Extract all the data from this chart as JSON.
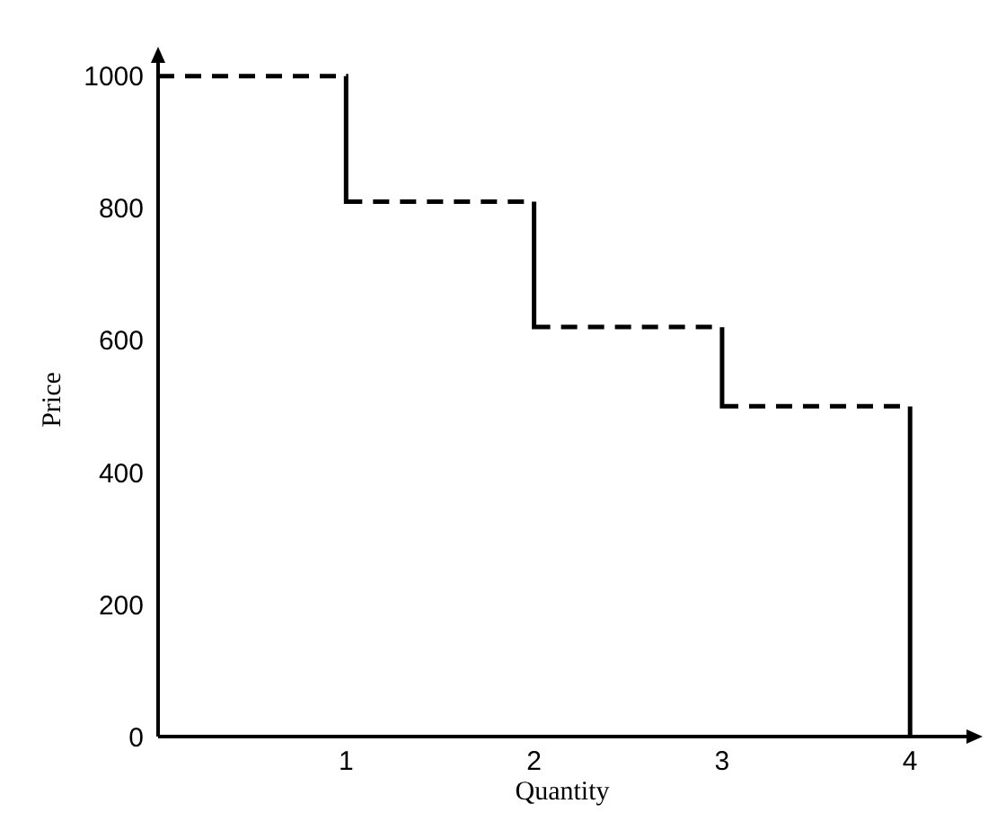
{
  "chart_data": {
    "type": "step",
    "xlabel": "Quantity",
    "ylabel": "Price",
    "xlim": [
      0,
      4.3
    ],
    "xticks": [
      1,
      2,
      3,
      4
    ],
    "ylim": [
      0,
      1020
    ],
    "yticks": [
      0,
      200,
      400,
      600,
      800,
      1000
    ],
    "grid": false,
    "line_style": "dashed",
    "x": [
      0,
      1,
      2,
      3,
      4
    ],
    "series": [
      {
        "color": "#000000",
        "values": [
          1000,
          810,
          620,
          500,
          0
        ]
      }
    ]
  }
}
